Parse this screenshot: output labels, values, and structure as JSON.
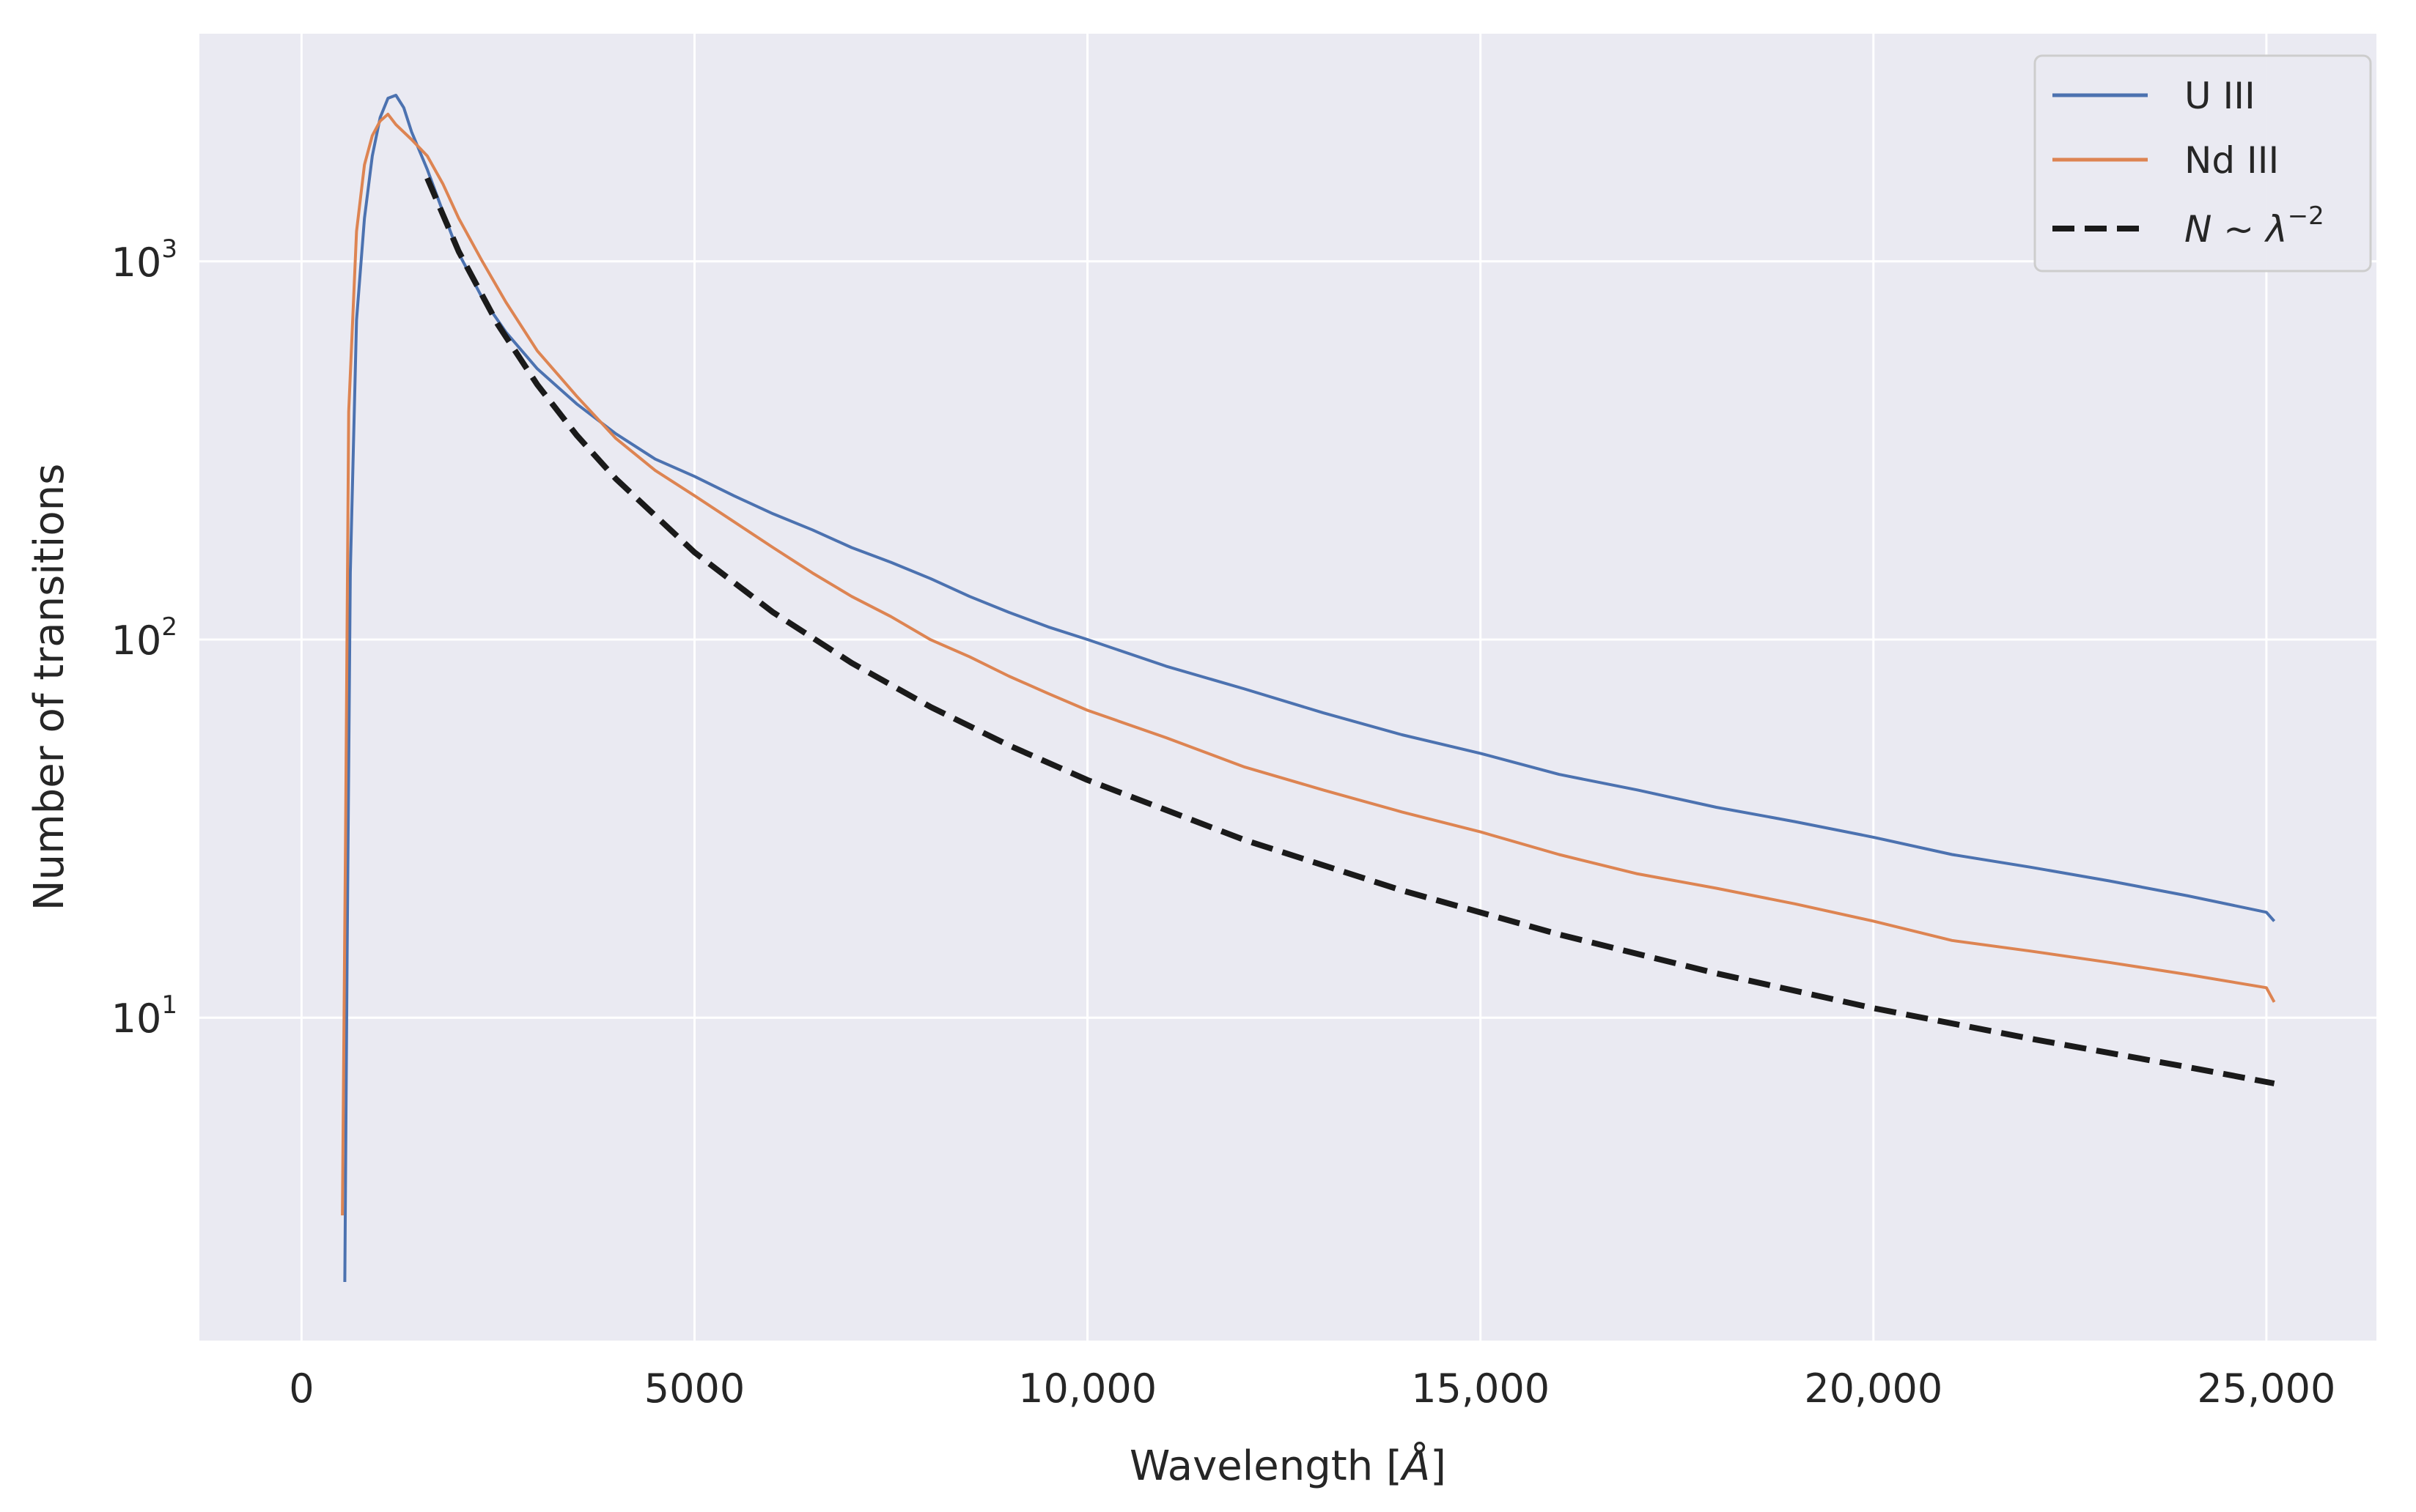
{
  "chart_data": {
    "type": "line",
    "title": "",
    "xlabel_main": "Wavelength [",
    "xlabel_unit": "Å",
    "xlabel_end": "]",
    "ylabel": "Number of transitions",
    "xlim": [
      -1300,
      26400
    ],
    "ylim": [
      1.4,
      4000
    ],
    "yscale": "log",
    "grid": true,
    "legend_position": "top-right",
    "x_ticks": [
      {
        "value": 0,
        "label": "0"
      },
      {
        "value": 5000,
        "label": "5000"
      },
      {
        "value": 10000,
        "label": "10,000"
      },
      {
        "value": 15000,
        "label": "15,000"
      },
      {
        "value": 20000,
        "label": "20,000"
      },
      {
        "value": 25000,
        "label": "25,000"
      }
    ],
    "y_ticks": [
      {
        "value": 10,
        "base": "10",
        "exp": "1"
      },
      {
        "value": 100,
        "base": "10",
        "exp": "2"
      },
      {
        "value": 1000,
        "base": "10",
        "exp": "3"
      }
    ],
    "series": [
      {
        "name": "U III",
        "color": "#4c72b0",
        "style": "solid",
        "x": [
          550,
          580,
          620,
          700,
          800,
          900,
          1000,
          1100,
          1200,
          1300,
          1400,
          1600,
          1800,
          2000,
          2300,
          2600,
          3000,
          3500,
          4000,
          4500,
          5000,
          5500,
          6000,
          6500,
          7000,
          7500,
          8000,
          8500,
          9000,
          9500,
          10000,
          11000,
          12000,
          13000,
          14000,
          15000,
          16000,
          17000,
          18000,
          19000,
          20000,
          21000,
          22000,
          23000,
          24000,
          25000,
          25100
        ],
        "y": [
          2,
          15,
          150,
          700,
          1300,
          1900,
          2400,
          2700,
          2750,
          2550,
          2200,
          1750,
          1350,
          1050,
          800,
          650,
          520,
          420,
          350,
          300,
          270,
          240,
          215,
          195,
          175,
          160,
          145,
          130,
          118,
          108,
          100,
          85,
          74,
          64,
          56,
          50,
          44,
          40,
          36,
          33,
          30,
          27,
          25,
          23,
          21,
          19,
          18
        ]
      },
      {
        "name": "Nd III",
        "color": "#dd8452",
        "style": "solid",
        "x": [
          520,
          560,
          600,
          700,
          800,
          900,
          1000,
          1100,
          1200,
          1400,
          1600,
          1800,
          2000,
          2300,
          2600,
          3000,
          3500,
          4000,
          4500,
          5000,
          5500,
          6000,
          6500,
          7000,
          7500,
          8000,
          8500,
          9000,
          9500,
          10000,
          11000,
          12000,
          13000,
          14000,
          15000,
          16000,
          17000,
          18000,
          19000,
          20000,
          21000,
          22000,
          23000,
          24000,
          25000,
          25100
        ],
        "y": [
          3,
          30,
          400,
          1200,
          1800,
          2150,
          2350,
          2450,
          2300,
          2100,
          1900,
          1600,
          1300,
          1000,
          780,
          580,
          440,
          340,
          280,
          240,
          205,
          175,
          150,
          130,
          115,
          100,
          90,
          80,
          72,
          65,
          55,
          46,
          40,
          35,
          31,
          27,
          24,
          22,
          20,
          18,
          16,
          15,
          14,
          13,
          12,
          11
        ]
      },
      {
        "name_prefix": "N ~ λ",
        "name_exp": "−2",
        "color": "#1a1a1a",
        "style": "dashed",
        "x": [
          1600,
          2000,
          2500,
          3000,
          3500,
          4000,
          5000,
          6000,
          7000,
          8000,
          9000,
          10000,
          12000,
          14000,
          16000,
          18000,
          20000,
          22000,
          24000,
          25100
        ],
        "y": [
          1660,
          1062,
          680,
          472,
          347,
          266,
          170,
          118,
          86.7,
          66.4,
          52.5,
          42.5,
          29.5,
          21.7,
          16.6,
          13.1,
          10.6,
          8.8,
          7.4,
          6.7
        ]
      }
    ]
  }
}
